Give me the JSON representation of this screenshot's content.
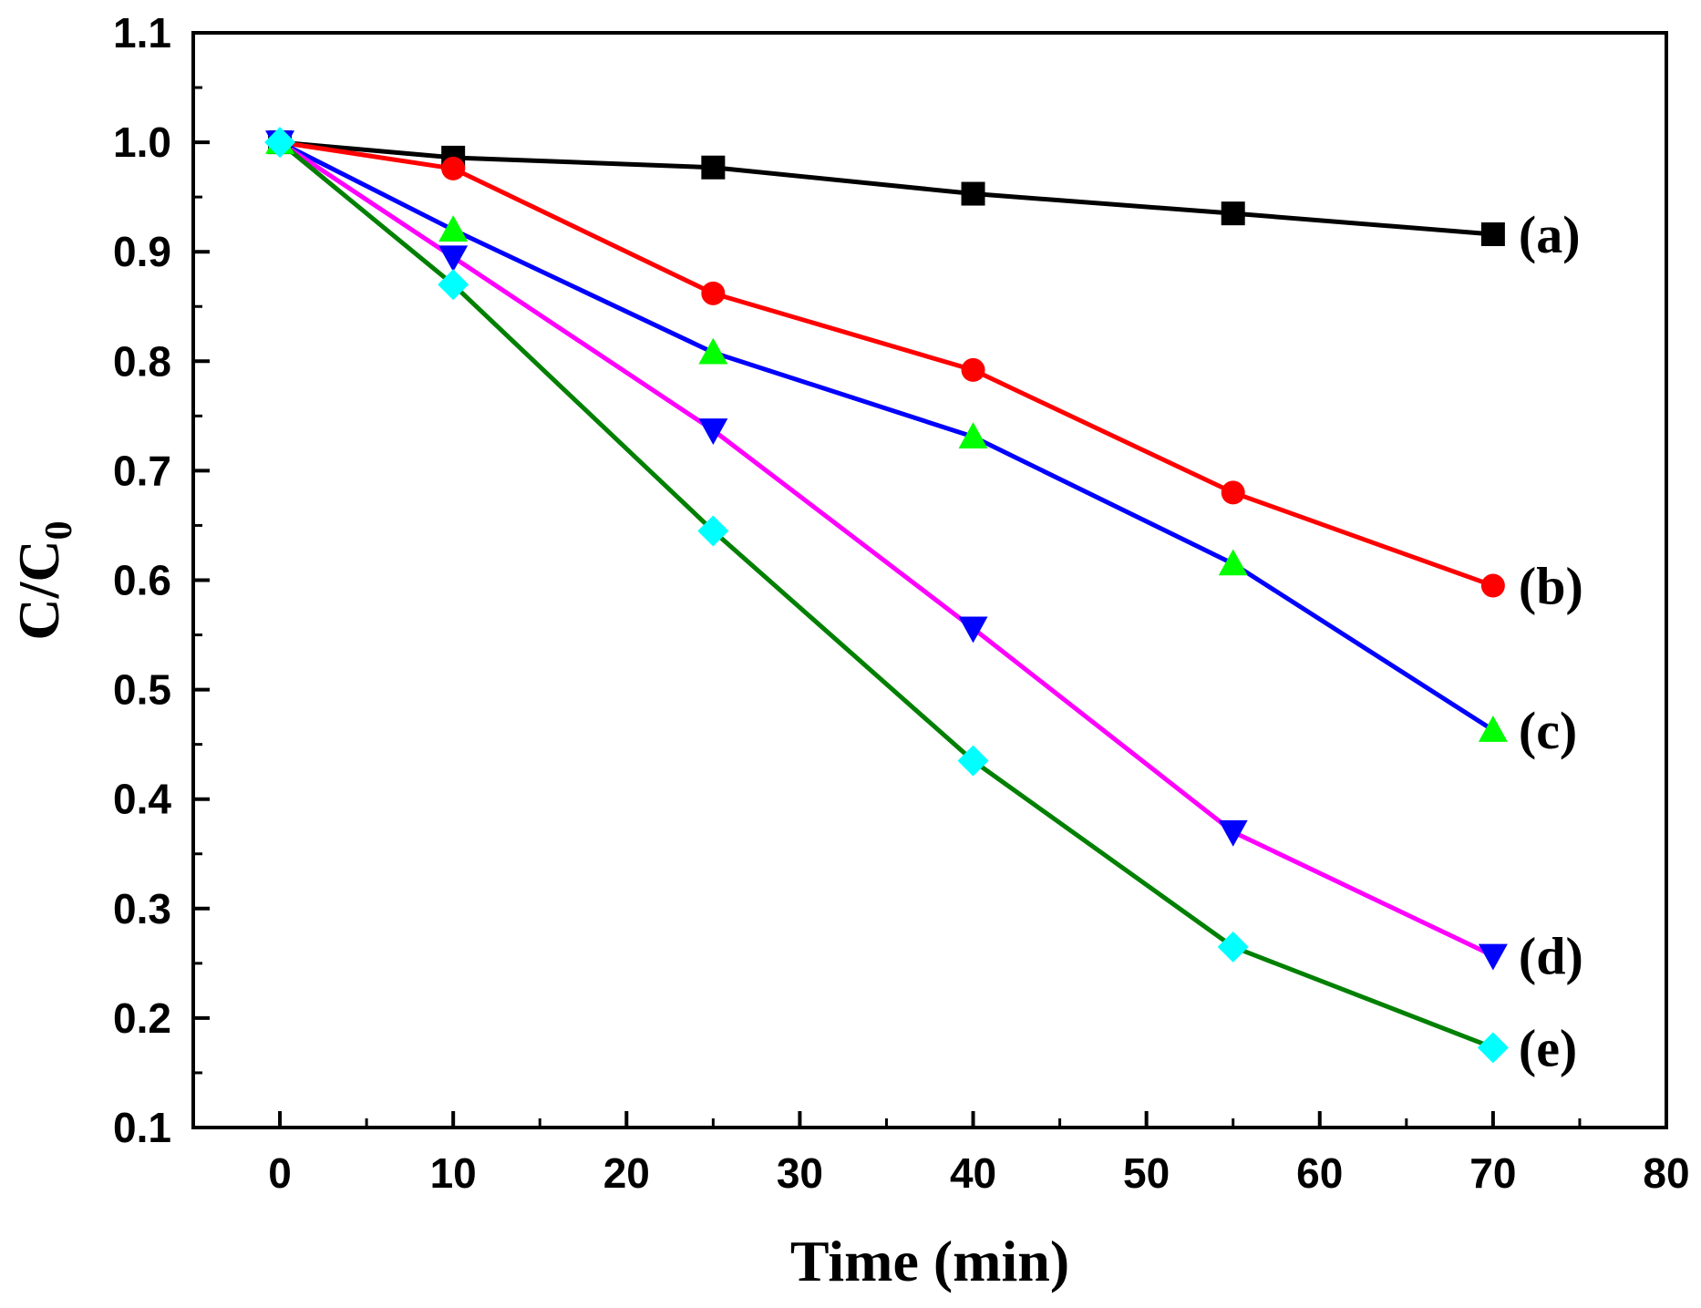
{
  "chart_data": {
    "type": "line",
    "title": "",
    "xlabel": "Time (min)",
    "ylabel": {
      "main": "C/C",
      "subscript": "0"
    },
    "xlim": [
      -5,
      80
    ],
    "ylim": [
      0.1,
      1.1
    ],
    "xticks": [
      0,
      10,
      20,
      30,
      40,
      50,
      60,
      70,
      80
    ],
    "yticks": [
      0.1,
      0.2,
      0.3,
      0.4,
      0.5,
      0.6,
      0.7,
      0.8,
      0.9,
      1.0,
      1.1
    ],
    "xtick_labels": [
      "0",
      "10",
      "20",
      "30",
      "40",
      "50",
      "60",
      "70",
      "80"
    ],
    "ytick_labels": [
      "0.1",
      "0.2",
      "0.3",
      "0.4",
      "0.5",
      "0.6",
      "0.7",
      "0.8",
      "0.9",
      "1.0",
      "1.1"
    ],
    "grid": false,
    "legend": "none",
    "series": [
      {
        "name": "(a)",
        "label": "(a)",
        "line_color": "#000000",
        "marker": "square",
        "marker_color": "#000000",
        "x": [
          0,
          10,
          25,
          40,
          55,
          70
        ],
        "y": [
          1.0,
          0.986,
          0.977,
          0.953,
          0.935,
          0.916
        ]
      },
      {
        "name": "(b)",
        "label": "(b)",
        "line_color": "#ff0000",
        "marker": "circle",
        "marker_color": "#ff0000",
        "x": [
          0,
          10,
          25,
          40,
          55,
          70
        ],
        "y": [
          1.0,
          0.976,
          0.862,
          0.792,
          0.68,
          0.595
        ]
      },
      {
        "name": "(c)",
        "label": "(c)",
        "line_color": "#0000ff",
        "marker": "triangle-up",
        "marker_color": "#00ff00",
        "x": [
          0,
          10,
          25,
          40,
          55,
          70
        ],
        "y": [
          1.0,
          0.92,
          0.808,
          0.731,
          0.615,
          0.463
        ]
      },
      {
        "name": "(d)",
        "label": "(d)",
        "line_color": "#ff00ff",
        "marker": "triangle-down",
        "marker_color": "#0000ff",
        "x": [
          0,
          10,
          25,
          40,
          55,
          70
        ],
        "y": [
          1.0,
          0.895,
          0.737,
          0.556,
          0.37,
          0.257
        ]
      },
      {
        "name": "(e)",
        "label": "(e)",
        "line_color": "#008000",
        "marker": "diamond",
        "marker_color": "#00ffff",
        "x": [
          0,
          10,
          25,
          40,
          55,
          70
        ],
        "y": [
          1.0,
          0.87,
          0.645,
          0.435,
          0.265,
          0.173
        ]
      }
    ]
  }
}
